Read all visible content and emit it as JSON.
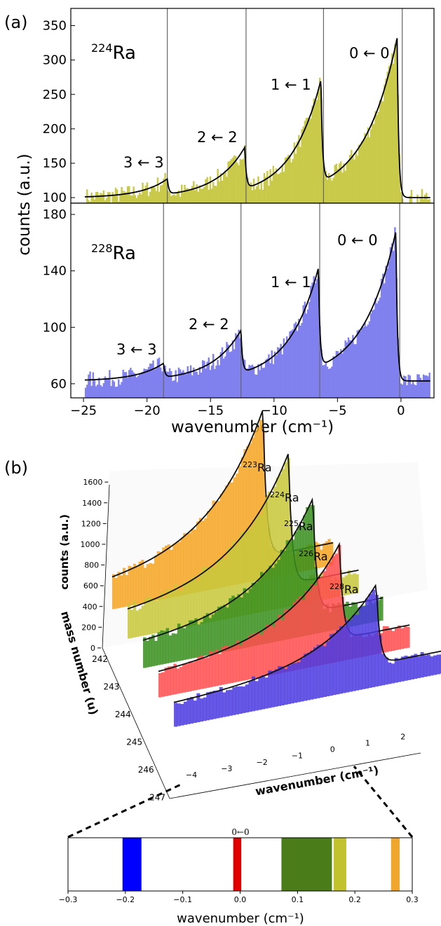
{
  "panel_labels": {
    "a": "(a)",
    "b": "(b)"
  },
  "chart_data": [
    {
      "id": "a_top",
      "type": "bar",
      "isotope": {
        "mass": "224",
        "element": "Ra"
      },
      "color": "#c9c94a",
      "ylim": [
        92,
        375
      ],
      "xlim": [
        -26,
        2.6
      ],
      "yticks": [
        "100",
        "150",
        "200",
        "250",
        "300",
        "350"
      ],
      "model": {
        "baseline": 100,
        "peaks": [
          {
            "label": "0 ← 0",
            "x": -0.3,
            "height": 232,
            "tau": 2.6
          },
          {
            "label": "1 ← 1",
            "x": -6.3,
            "height": 148,
            "tau": 2.3
          },
          {
            "label": "2 ← 2",
            "x": -12.3,
            "height": 60,
            "tau": 2.3
          },
          {
            "label": "3 ← 3",
            "x": -18.4,
            "height": 22,
            "tau": 2.0
          }
        ]
      },
      "vlines": [
        -18.4,
        -12.2,
        -6.1,
        0.1
      ]
    },
    {
      "id": "a_bottom",
      "type": "bar",
      "isotope": {
        "mass": "228",
        "element": "Ra"
      },
      "color": "#8080ee",
      "ylim": [
        50,
        188
      ],
      "xlim": [
        -26,
        2.6
      ],
      "yticks": [
        "60",
        "100",
        "140",
        "180"
      ],
      "model": {
        "baseline": 62,
        "peaks": [
          {
            "label": "0 ← 0",
            "x": -0.4,
            "height": 106,
            "tau": 2.6
          },
          {
            "label": "1 ← 1",
            "x": -6.5,
            "height": 70,
            "tau": 2.3
          },
          {
            "label": "2 ← 2",
            "x": -12.6,
            "height": 30,
            "tau": 2.3
          },
          {
            "label": "3 ← 3",
            "x": -18.7,
            "height": 10,
            "tau": 2.0
          }
        ]
      },
      "vlines": [
        -18.7,
        -12.6,
        -6.4,
        -0.1
      ]
    },
    {
      "id": "b_3d",
      "type": "bar",
      "series": [
        {
          "mass": "223",
          "element": "Ra",
          "color": "#f5a623",
          "peak": 1660,
          "offset": 0.27
        },
        {
          "mass": "224",
          "element": "Ra",
          "color": "#c8c83c",
          "peak": 1500,
          "offset": 0.18
        },
        {
          "mass": "225",
          "element": "Ra",
          "color": "#3a8f1e",
          "peak": 1330,
          "offset": 0.1
        },
        {
          "mass": "226",
          "element": "Ra",
          "color": "#ff4d4d",
          "peak": 1150,
          "offset": 0.0
        },
        {
          "mass": "228",
          "element": "Ra",
          "color": "#4b3be0",
          "peak": 1000,
          "offset": -0.19
        }
      ],
      "zticks": [
        "0",
        "200",
        "400",
        "600",
        "800",
        "1000",
        "1200",
        "1400",
        "1600"
      ],
      "mass_ticks": [
        "242",
        "243",
        "244",
        "245",
        "246",
        "247"
      ],
      "x_ticks": [
        "−4",
        "−3",
        "−2",
        "−1",
        "0",
        "1",
        "2"
      ],
      "zlabel": "counts (a.u.)",
      "ylabel": "mass number (u)",
      "xlabel": "wavenumber (cm⁻¹)"
    },
    {
      "id": "b_inset",
      "type": "bar",
      "title": "0←0",
      "xlim": [
        -0.3,
        0.3
      ],
      "xticks": [
        "−0.3",
        "−0.2",
        "−0.1",
        "0.0",
        "0.1",
        "0.2",
        "0.3"
      ],
      "bands": [
        {
          "x0": -0.205,
          "x1": -0.172,
          "color": "#0000ff"
        },
        {
          "x0": -0.012,
          "x1": 0.002,
          "color": "#e00000"
        },
        {
          "x0": 0.072,
          "x1": 0.16,
          "color": "#4a7d1a"
        },
        {
          "x0": 0.163,
          "x1": 0.185,
          "color": "#c2c22e"
        },
        {
          "x0": 0.263,
          "x1": 0.278,
          "color": "#f0a52c"
        }
      ],
      "xlabel": "wavenumber (cm⁻¹)"
    }
  ],
  "axis_a": {
    "xticks": [
      "−25",
      "−20",
      "−15",
      "−10",
      "−5",
      "0"
    ],
    "xlabel": "wavenumber (cm⁻¹)",
    "ylabel": "counts (a.u.)"
  }
}
